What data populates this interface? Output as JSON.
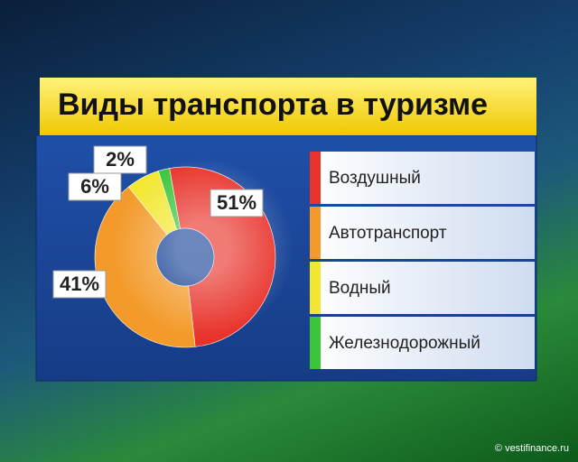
{
  "chart_data": {
    "type": "donut",
    "title": "Виды транспорта в туризме",
    "categories": [
      "Воздушный",
      "Автотранспорт",
      "Водный",
      "Железнодорожный"
    ],
    "values": [
      51,
      41,
      6,
      2
    ],
    "value_labels": [
      "51%",
      "41%",
      "6%",
      "2%"
    ],
    "colors": [
      "#e8322a",
      "#f39a2a",
      "#f2e832",
      "#3cc43a"
    ],
    "source": "© vestifinance.ru"
  }
}
